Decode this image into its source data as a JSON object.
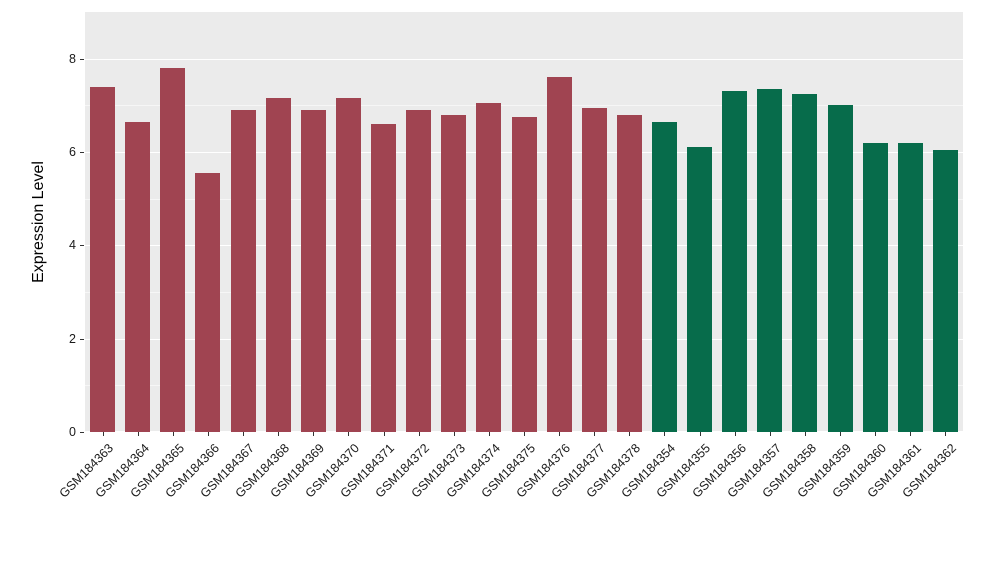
{
  "chart_data": {
    "type": "bar",
    "title": "",
    "xlabel": "",
    "ylabel": "Expression Level",
    "ylim": [
      0,
      9
    ],
    "yticks": [
      0,
      2,
      4,
      6,
      8
    ],
    "yticks_minor": [
      1,
      3,
      5,
      7
    ],
    "grid": true,
    "legend": "none",
    "panel_background": "#EBEBEB",
    "categories": [
      "GSM184363",
      "GSM184364",
      "GSM184365",
      "GSM184366",
      "GSM184367",
      "GSM184368",
      "GSM184369",
      "GSM184370",
      "GSM184371",
      "GSM184372",
      "GSM184373",
      "GSM184374",
      "GSM184375",
      "GSM184376",
      "GSM184377",
      "GSM184378",
      "GSM184354",
      "GSM184355",
      "GSM184356",
      "GSM184357",
      "GSM184358",
      "GSM184359",
      "GSM184360",
      "GSM184361",
      "GSM184362"
    ],
    "values": [
      7.4,
      6.65,
      7.8,
      5.55,
      6.9,
      7.15,
      6.9,
      7.15,
      6.6,
      6.9,
      6.8,
      7.05,
      6.75,
      7.6,
      6.95,
      6.8,
      6.65,
      6.1,
      7.3,
      7.35,
      7.25,
      7.0,
      6.2,
      6.2,
      6.05
    ],
    "group_of_bar": [
      "group1",
      "group1",
      "group1",
      "group1",
      "group1",
      "group1",
      "group1",
      "group1",
      "group1",
      "group1",
      "group1",
      "group1",
      "group1",
      "group1",
      "group1",
      "group1",
      "group2",
      "group2",
      "group2",
      "group2",
      "group2",
      "group2",
      "group2",
      "group2",
      "group2"
    ],
    "group_colors": {
      "group1": "#A04451",
      "group2": "#076C4B"
    }
  }
}
